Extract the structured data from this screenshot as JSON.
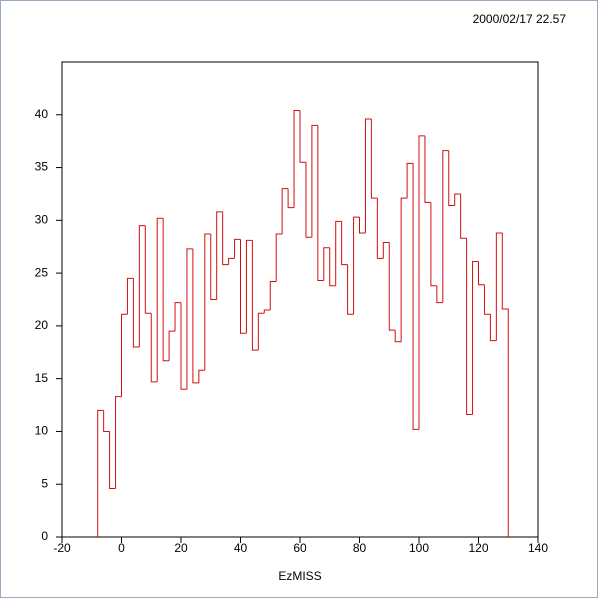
{
  "chart_data": {
    "type": "histogram",
    "timestamp": "2000/02/17  22.57",
    "xlabel": "EzMISS",
    "color": "#d01010",
    "bins": [
      -8,
      -6,
      -4,
      -2,
      0,
      2,
      4,
      6,
      8,
      10,
      12,
      14,
      16,
      18,
      20,
      22,
      24,
      26,
      28,
      30,
      32,
      34,
      36,
      38,
      40,
      42,
      44,
      46,
      48,
      50,
      52,
      54,
      56,
      58,
      60,
      62,
      64,
      66,
      68,
      70,
      72,
      74,
      76,
      78,
      80,
      82,
      84,
      86,
      88,
      90,
      92,
      94,
      96,
      98,
      100,
      102,
      104,
      106,
      108,
      110,
      112,
      114,
      116,
      118,
      120,
      122,
      124,
      126,
      128,
      130
    ],
    "values": [
      12,
      10,
      4.6,
      13.3,
      21.1,
      24.5,
      18,
      29.5,
      21.2,
      14.7,
      30.2,
      16.7,
      19.5,
      22.2,
      14,
      27.3,
      14.6,
      15.8,
      28.7,
      22.5,
      30.8,
      25.8,
      26.4,
      28.2,
      19.3,
      28.1,
      17.7,
      21.2,
      21.5,
      24.2,
      28.7,
      33,
      31.2,
      40.4,
      35.5,
      28.4,
      39,
      24.3,
      27.4,
      23.8,
      29.9,
      25.8,
      21.1,
      30.3,
      28.8,
      39.6,
      32.1,
      26.4,
      27.9,
      19.6,
      18.5,
      32.1,
      35.4,
      10.2,
      38,
      31.7,
      23.8,
      22.2,
      36.6,
      31.4,
      32.5,
      28.3,
      11.6,
      26.1,
      23.9,
      21.1,
      18.6,
      28.8,
      21.6
    ],
    "xlim": [
      -20,
      140
    ],
    "xticks": [
      -20,
      0,
      20,
      40,
      60,
      80,
      100,
      120,
      140
    ],
    "ylim": [
      0,
      45
    ],
    "yticks": [
      0,
      5,
      10,
      15,
      20,
      25,
      30,
      35,
      40
    ]
  }
}
